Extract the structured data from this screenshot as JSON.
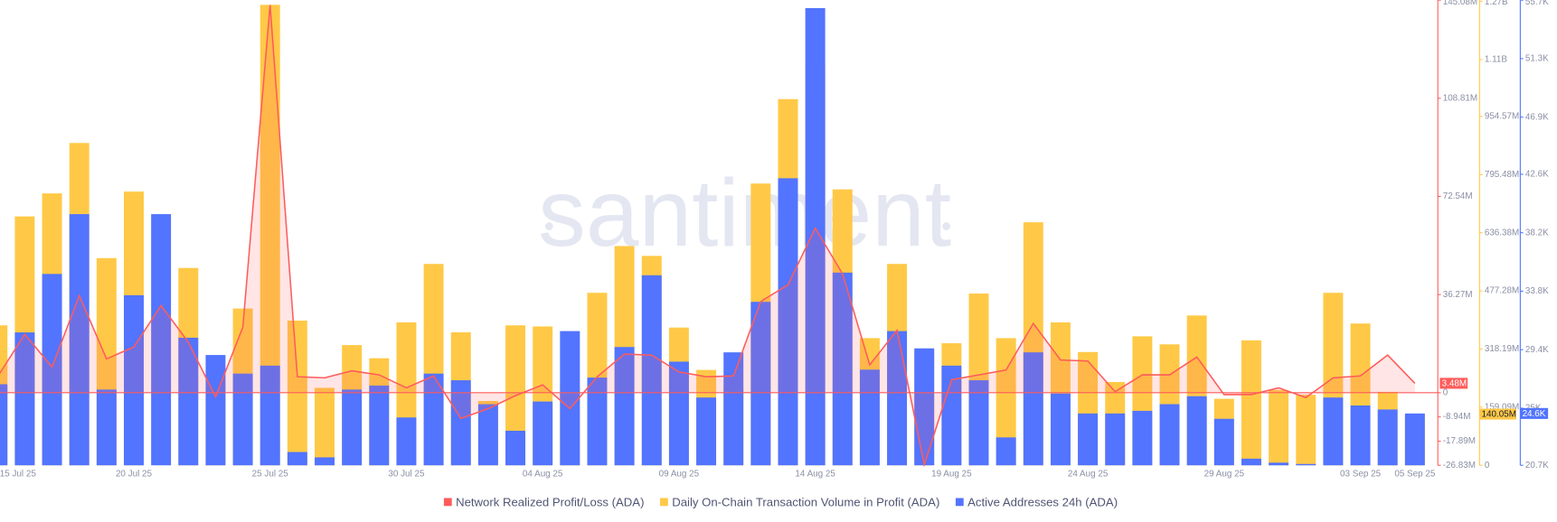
{
  "chart_data": {
    "type": "combo",
    "watermark": "santiment",
    "categories": [
      "15 Jul 25",
      null,
      null,
      null,
      null,
      "20 Jul 25",
      null,
      null,
      null,
      null,
      "25 Jul 25",
      null,
      null,
      null,
      null,
      "30 Jul 25",
      null,
      null,
      null,
      null,
      "04 Aug 25",
      null,
      null,
      null,
      null,
      "09 Aug 25",
      null,
      null,
      null,
      null,
      "14 Aug 25",
      null,
      null,
      null,
      null,
      "19 Aug 25",
      null,
      null,
      null,
      null,
      "24 Aug 25",
      null,
      null,
      null,
      null,
      "29 Aug 25",
      null,
      null,
      null,
      null,
      "03 Sep 25",
      null,
      "05 Sep 25"
    ],
    "series": [
      {
        "name": "Network Realized Profit/Loss (ADA)",
        "type": "line",
        "axis": "y",
        "color": "#ff5b5b",
        "values": [
          5900000,
          21600000,
          9500000,
          35900000,
          12500000,
          16900000,
          32200000,
          18700000,
          -1500000,
          24200000,
          143300000,
          5900000,
          5500000,
          8100000,
          6600000,
          1800000,
          6200000,
          -9500000,
          -5900000,
          -1100000,
          2900000,
          -5900000,
          5900000,
          14300000,
          13900000,
          7700000,
          5900000,
          6200000,
          33700000,
          39900000,
          60800000,
          44000000,
          10300000,
          23100000,
          -26700000,
          4800000,
          6600000,
          8400000,
          25600000,
          12100000,
          11700000,
          400000,
          6600000,
          6600000,
          13200000,
          -700000,
          -700000,
          1800000,
          -1800000,
          5500000,
          6200000,
          13900000,
          3480000
        ],
        "value_labels": [
          null,
          null,
          null,
          null,
          null,
          null,
          null,
          null,
          null,
          null,
          null,
          null,
          null,
          null,
          null,
          null,
          null,
          null,
          null,
          null,
          null,
          null,
          null,
          null,
          null,
          null,
          null,
          null,
          null,
          null,
          null,
          null,
          null,
          null,
          null,
          null,
          null,
          null,
          null,
          null,
          null,
          null,
          null,
          null,
          null,
          null,
          null,
          null,
          null,
          null,
          null,
          null,
          "3.48M"
        ]
      },
      {
        "name": "Daily On-Chain Transaction Volume in Profit (ADA)",
        "type": "bar",
        "axis": "y2",
        "color": "#ffc947",
        "values": [
          383000000,
          681000000,
          744000000,
          882000000,
          567000000,
          749000000,
          0,
          540000000,
          214000000,
          429000000,
          1260000000,
          396000000,
          212000000,
          329000000,
          293000000,
          391000000,
          551000000,
          364000000,
          176000000,
          383000000,
          380000000,
          220000000,
          472000000,
          600000000,
          573000000,
          377000000,
          261000000,
          214000000,
          771000000,
          1002000000,
          1097000000,
          755000000,
          348000000,
          551000000,
          315000000,
          334000000,
          470000000,
          348000000,
          665000000,
          391000000,
          310000000,
          228000000,
          353000000,
          331000000,
          410000000,
          182000000,
          342000000,
          206000000,
          193000000,
          472000000,
          388000000,
          201000000,
          140050000
        ],
        "value_labels": [
          null,
          null,
          null,
          null,
          null,
          null,
          null,
          null,
          null,
          null,
          null,
          null,
          null,
          null,
          null,
          null,
          null,
          null,
          null,
          null,
          null,
          null,
          null,
          null,
          null,
          null,
          null,
          null,
          null,
          null,
          null,
          null,
          null,
          null,
          null,
          null,
          null,
          null,
          null,
          null,
          null,
          null,
          null,
          null,
          null,
          null,
          null,
          null,
          null,
          null,
          null,
          null,
          "140.05M"
        ]
      },
      {
        "name": "Active Addresses 24h (ADA)",
        "type": "bar",
        "axis": "y3",
        "color": "#5274ff",
        "values": [
          26800,
          30700,
          35100,
          39600,
          26400,
          33500,
          39600,
          30300,
          29000,
          27600,
          28200,
          21700,
          21300,
          26400,
          26700,
          24300,
          27600,
          27100,
          25300,
          23300,
          25500,
          30800,
          27300,
          29600,
          35000,
          28500,
          25800,
          29200,
          33000,
          42300,
          55100,
          35200,
          27900,
          30800,
          29500,
          28200,
          27100,
          22800,
          29200,
          26100,
          24600,
          24600,
          24800,
          25300,
          25900,
          24200,
          21200,
          20900,
          20800,
          25800,
          25200,
          24900,
          24600
        ],
        "value_labels": [
          null,
          null,
          null,
          null,
          null,
          null,
          null,
          null,
          null,
          null,
          null,
          null,
          null,
          null,
          null,
          null,
          null,
          null,
          null,
          null,
          null,
          null,
          null,
          null,
          null,
          null,
          null,
          null,
          null,
          null,
          null,
          null,
          null,
          null,
          null,
          null,
          null,
          null,
          null,
          null,
          null,
          null,
          null,
          null,
          null,
          null,
          null,
          null,
          null,
          null,
          null,
          null,
          "24.6K"
        ]
      }
    ],
    "ylim": [
      -26830000,
      145080000
    ],
    "yticks": [
      {
        "value": -26830000,
        "label": "-26.83M"
      },
      {
        "value": -17890000,
        "label": "-17.89M"
      },
      {
        "value": -8940000,
        "label": "-8.94M"
      },
      0,
      {
        "value": 36270000,
        "label": "36.27M"
      },
      {
        "value": 72540000,
        "label": "72.54M"
      },
      {
        "value": 108810000,
        "label": "108.81M"
      },
      {
        "value": 145080000,
        "label": "145.08M"
      }
    ],
    "y2lim": [
      0,
      1272760000
    ],
    "y2ticks": [
      0,
      {
        "value": 159090000,
        "label": "159.09M"
      },
      {
        "value": 318190000,
        "label": "318.19M"
      },
      {
        "value": 477280000,
        "label": "477.28M"
      },
      {
        "value": 636380000,
        "label": "636.38M"
      },
      {
        "value": 795480000,
        "label": "795.48M"
      },
      {
        "value": 954570000,
        "label": "954.57M"
      },
      {
        "value": 1110000000,
        "label": "1.11B"
      },
      {
        "value": 1270000000,
        "label": "1.27B"
      }
    ],
    "y3lim": [
      20700,
      55700
    ],
    "y3ticks": [
      {
        "value": 20700,
        "label": "20.7K"
      },
      {
        "value": 25000,
        "label": "25K"
      },
      {
        "value": 29400,
        "label": "29.4K"
      },
      {
        "value": 33800,
        "label": "33.8K"
      },
      {
        "value": 38200,
        "label": "38.2K"
      },
      {
        "value": 42600,
        "label": "42.6K"
      },
      {
        "value": 46900,
        "label": "46.9K"
      },
      {
        "value": 51300,
        "label": "51.3K"
      },
      {
        "value": 55700,
        "label": "55.7K"
      }
    ],
    "legend": "bottom"
  }
}
